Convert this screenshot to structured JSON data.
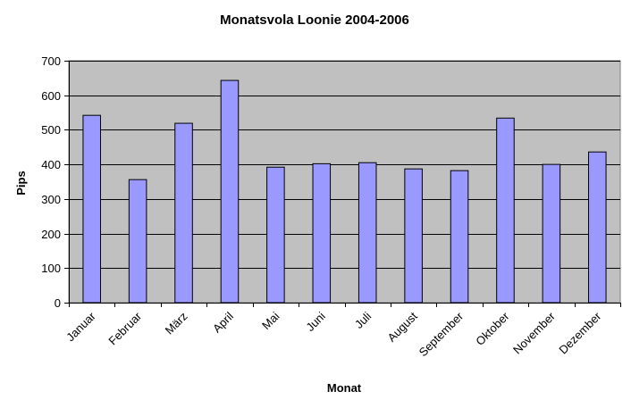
{
  "chart_data": {
    "type": "bar",
    "title": "Monatsvola Loonie 2004-2006",
    "xlabel": "Monat",
    "ylabel": "Pips",
    "categories": [
      "Januar",
      "Februar",
      "März",
      "April",
      "Mai",
      "Juni",
      "Juli",
      "August",
      "September",
      "Oktober",
      "November",
      "Dezember"
    ],
    "values": [
      542,
      356,
      519,
      643,
      392,
      402,
      405,
      387,
      382,
      534,
      400,
      436
    ],
    "ylim": [
      0,
      700
    ],
    "yticks": [
      0,
      100,
      200,
      300,
      400,
      500,
      600,
      700
    ],
    "grid": true,
    "legend": "none",
    "colors": {
      "bar_fill": "#9999ff",
      "bar_stroke": "#000000",
      "plot_background": "#c0c0c0",
      "gridline": "#000000"
    }
  }
}
